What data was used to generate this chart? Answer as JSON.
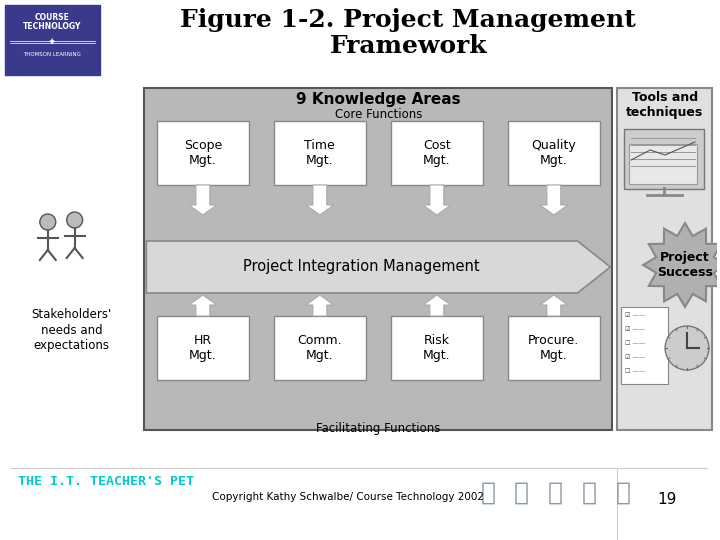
{
  "title_line1": "Figure 1-2. Project Management",
  "title_line2": "Framework",
  "title_fontsize": 18,
  "bg_color": "#ffffff",
  "core_boxes": [
    "Scope\nMgt.",
    "Time\nMgt.",
    "Cost\nMgt.",
    "Quality\nMgt."
  ],
  "facil_boxes": [
    "HR\nMgt.",
    "Comm.\nMgt.",
    "Risk\nMgt.",
    "Procure.\nMgt."
  ],
  "integration_text": "Project Integration Management",
  "core_label": "Core Functions",
  "facil_label": "Facilitating Functions",
  "knowledge_title": "9 Knowledge Areas",
  "tools_title": "Tools and\ntechniques",
  "project_success": "Project\nSuccess",
  "stakeholders_text": "Stakeholders'\nneeds and\nexpectations",
  "copyright": "Copyright Kathy Schwalbe/ Course Technology 2002",
  "page_num": "19",
  "footer_text": "THE I.T. TEACHER'S PET",
  "footer_color": "#00cccc",
  "main_gray": "#b8b8b8",
  "light_gray": "#d8d8d8",
  "tools_gray": "#e0e0e0",
  "white": "#ffffff",
  "logo_blue": "#3a3a8c"
}
